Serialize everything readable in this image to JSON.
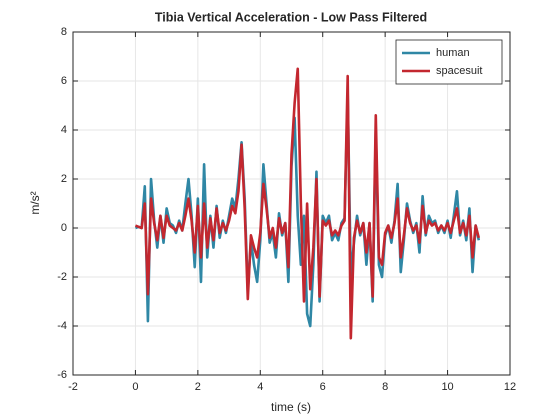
{
  "chart_data": {
    "type": "line",
    "title": "Tibia Vertical Acceleration - Low Pass Filtered",
    "xlabel": "time (s)",
    "ylabel": "m/s²",
    "x": [
      0,
      0.1,
      0.2,
      0.3,
      0.4,
      0.5,
      0.6,
      0.7,
      0.8,
      0.9,
      1,
      1.1,
      1.2,
      1.3,
      1.4,
      1.5,
      1.6,
      1.7,
      1.8,
      1.9,
      2,
      2.1,
      2.2,
      2.3,
      2.4,
      2.5,
      2.6,
      2.7,
      2.8,
      2.9,
      3,
      3.1,
      3.2,
      3.3,
      3.4,
      3.5,
      3.6,
      3.7,
      3.8,
      3.9,
      4,
      4.1,
      4.2,
      4.3,
      4.4,
      4.5,
      4.6,
      4.7,
      4.8,
      4.9,
      5,
      5.1,
      5.2,
      5.3,
      5.4,
      5.5,
      5.6,
      5.7,
      5.8,
      5.9,
      6,
      6.1,
      6.2,
      6.3,
      6.4,
      6.5,
      6.6,
      6.7,
      6.8,
      6.9,
      7,
      7.1,
      7.2,
      7.3,
      7.4,
      7.5,
      7.6,
      7.7,
      7.8,
      7.9,
      8,
      8.1,
      8.2,
      8.3,
      8.4,
      8.5,
      8.6,
      8.7,
      8.8,
      8.9,
      9,
      9.1,
      9.2,
      9.3,
      9.4,
      9.5,
      9.6,
      9.7,
      9.8,
      9.9,
      10,
      10.1,
      10.2,
      10.3,
      10.4,
      10.5,
      10.6,
      10.7,
      10.8,
      10.9,
      11
    ],
    "series": [
      {
        "name": "human",
        "color": "#2f87a5",
        "values": [
          0,
          0.05,
          0,
          1.7,
          -3.8,
          2.0,
          0.3,
          -0.8,
          0.5,
          -0.6,
          0.8,
          0.2,
          0.1,
          -0.2,
          0.3,
          -0.1,
          1.0,
          2.0,
          0.5,
          -1.6,
          1.2,
          -2.2,
          2.6,
          -1.2,
          0.5,
          -0.8,
          0.9,
          -0.4,
          0.3,
          -0.2,
          0.5,
          1.2,
          0.8,
          2.0,
          3.5,
          1.2,
          -2.6,
          -0.5,
          -1.5,
          -2.2,
          -0.5,
          2.6,
          1.0,
          -0.6,
          -0.2,
          -1.2,
          0.6,
          -0.3,
          0.2,
          -2.2,
          2.5,
          4.5,
          0.5,
          -1.5,
          0.5,
          -3.5,
          -4.0,
          -1.5,
          2.3,
          -3.0,
          0.5,
          0.2,
          0.5,
          -0.5,
          -0.2,
          -0.5,
          0.2,
          0.4,
          5.5,
          -2.0,
          -0.6,
          0.5,
          -0.3,
          0.2,
          -1.5,
          0.2,
          -3.0,
          4.0,
          -1.5,
          -2.0,
          -0.3,
          0.1,
          -0.6,
          0.3,
          1.8,
          -1.8,
          -0.5,
          1.0,
          0.3,
          -0.2,
          0.2,
          -1.0,
          1.3,
          -0.3,
          0.5,
          0.2,
          0.3,
          -0.2,
          0.1,
          -0.2,
          0.3,
          -0.4,
          0.5,
          1.5,
          -0.3,
          0.3,
          -0.5,
          0.8,
          -1.8,
          0.1,
          -0.5
        ]
      },
      {
        "name": "spacesuit",
        "color": "#c3272f",
        "values": [
          0.1,
          0.05,
          0,
          1.0,
          -2.7,
          1.2,
          0.2,
          -0.5,
          0.5,
          -0.4,
          0.5,
          0.1,
          0,
          -0.1,
          0.2,
          -0.1,
          0.5,
          1.2,
          0.3,
          -1.0,
          0.9,
          -1.2,
          1.0,
          -0.8,
          0.4,
          -0.5,
          0.8,
          -0.2,
          0.2,
          -0.1,
          0.3,
          0.9,
          0.6,
          1.5,
          3.4,
          0.8,
          -2.9,
          -0.3,
          -0.8,
          -1.2,
          -0.2,
          1.8,
          0.8,
          -0.4,
          0,
          -0.8,
          0.4,
          -0.2,
          0.2,
          -1.6,
          3.0,
          5.1,
          6.5,
          1.0,
          -3.0,
          1.0,
          -2.5,
          -0.8,
          2.0,
          -2.8,
          0.3,
          0.1,
          0.3,
          -0.3,
          -0.1,
          -0.3,
          0.1,
          0.3,
          6.2,
          -4.5,
          -0.4,
          0.3,
          -0.2,
          0.2,
          -1.0,
          0.2,
          -2.8,
          4.6,
          -1.2,
          -1.5,
          -0.2,
          0.1,
          -0.4,
          0.2,
          1.2,
          -1.2,
          -0.3,
          0.8,
          0.2,
          -0.1,
          0.1,
          -0.6,
          0.9,
          -0.2,
          0.3,
          0.1,
          0.2,
          -0.1,
          0.1,
          -0.1,
          0.2,
          -0.2,
          0.3,
          0.8,
          -0.2,
          0.2,
          -0.3,
          0.5,
          -1.2,
          0.1,
          -0.4
        ]
      }
    ],
    "xlim": [
      -2,
      12
    ],
    "xticks": [
      -2,
      0,
      2,
      4,
      6,
      8,
      10,
      12
    ],
    "ylim": [
      -6,
      8
    ],
    "yticks": [
      -6,
      -4,
      -2,
      0,
      2,
      4,
      6,
      8
    ],
    "grid": true,
    "legend": "northeast"
  }
}
